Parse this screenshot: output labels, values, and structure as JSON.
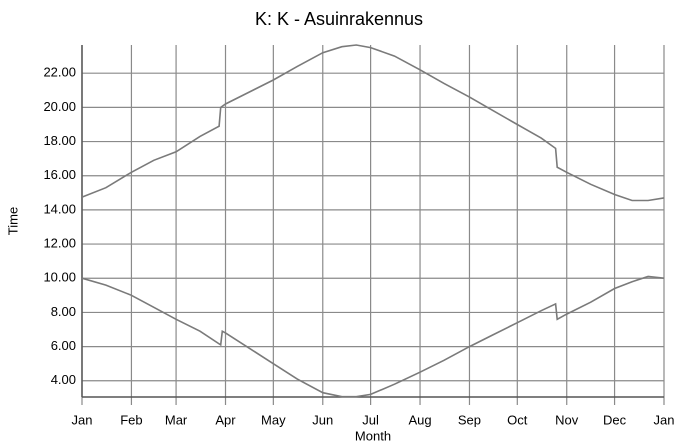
{
  "chart_data": {
    "type": "line",
    "title": "K: K - Asuinrakennus",
    "xlabel": "Month",
    "ylabel": "Time",
    "xlim": [
      0,
      365
    ],
    "xticks": [
      {
        "value": 0,
        "label": "Jan"
      },
      {
        "value": 31,
        "label": "Feb"
      },
      {
        "value": 59,
        "label": "Mar"
      },
      {
        "value": 90,
        "label": "Apr"
      },
      {
        "value": 120,
        "label": "May"
      },
      {
        "value": 151,
        "label": "Jun"
      },
      {
        "value": 181,
        "label": "Jul"
      },
      {
        "value": 212,
        "label": "Aug"
      },
      {
        "value": 243,
        "label": "Sep"
      },
      {
        "value": 273,
        "label": "Oct"
      },
      {
        "value": 304,
        "label": "Nov"
      },
      {
        "value": 334,
        "label": "Dec"
      },
      {
        "value": 365,
        "label": "Jan"
      }
    ],
    "ylim": [
      3.05,
      23.65
    ],
    "yticks": [
      {
        "value": 4,
        "label": "4.00"
      },
      {
        "value": 6,
        "label": "6.00"
      },
      {
        "value": 8,
        "label": "8.00"
      },
      {
        "value": 10,
        "label": "10.00"
      },
      {
        "value": 12,
        "label": "12.00"
      },
      {
        "value": 14,
        "label": "14.00"
      },
      {
        "value": 16,
        "label": "16.00"
      },
      {
        "value": 18,
        "label": "18.00"
      },
      {
        "value": 20,
        "label": "20.00"
      },
      {
        "value": 22,
        "label": "22.00"
      }
    ],
    "grid": true,
    "series": [
      {
        "color": "#7a7a7a",
        "x": [
          0,
          15,
          31,
          45,
          59,
          74,
          86,
          87,
          90,
          105,
          120,
          135,
          151,
          163,
          172,
          181,
          196,
          212,
          227,
          243,
          258,
          273,
          288,
          297,
          298,
          304,
          319,
          334,
          345,
          355,
          365
        ],
        "values": [
          14.75,
          15.3,
          16.2,
          16.9,
          17.4,
          18.3,
          18.9,
          20.0,
          20.2,
          20.9,
          21.6,
          22.4,
          23.2,
          23.55,
          23.65,
          23.5,
          23.0,
          22.2,
          21.4,
          20.6,
          19.8,
          19.0,
          18.2,
          17.6,
          16.5,
          16.2,
          15.5,
          14.9,
          14.55,
          14.55,
          14.7
        ]
      },
      {
        "color": "#7a7a7a",
        "x": [
          0,
          15,
          31,
          45,
          59,
          74,
          87,
          88,
          90,
          105,
          120,
          135,
          151,
          163,
          172,
          181,
          196,
          212,
          227,
          243,
          258,
          273,
          288,
          297,
          298,
          304,
          319,
          334,
          345,
          355,
          365
        ],
        "values": [
          10.0,
          9.6,
          9.0,
          8.3,
          7.6,
          6.9,
          6.1,
          6.9,
          6.8,
          5.9,
          5.0,
          4.1,
          3.3,
          3.07,
          3.07,
          3.2,
          3.8,
          4.5,
          5.2,
          6.0,
          6.7,
          7.4,
          8.1,
          8.5,
          7.6,
          7.9,
          8.6,
          9.4,
          9.8,
          10.1,
          10.0
        ]
      }
    ]
  }
}
